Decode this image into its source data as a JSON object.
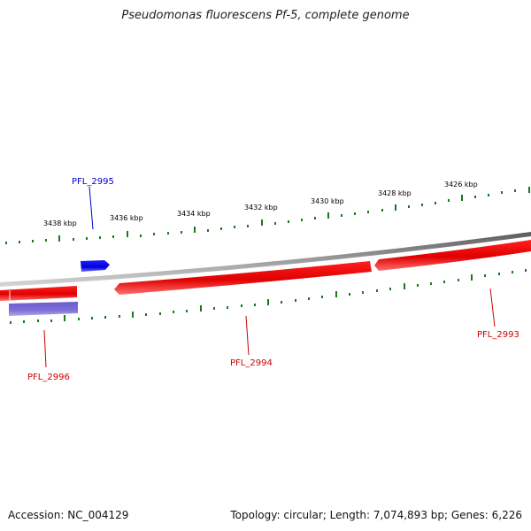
{
  "title": "Pseudomonas fluorescens Pf-5, complete genome",
  "footer": {
    "accession": "Accession: NC_004129",
    "summary": "Topology: circular; Length: 7,074,893 bp; Genes: 6,226"
  },
  "colors": {
    "backbone": "#808080",
    "ticks": "#1a7a1a",
    "forward_gene": "#0000ff",
    "forward_gene_label": "#0000cc",
    "reverse_gene": "#ee0000",
    "reverse_gene_label": "#cc0000",
    "lavender_gene": "#7060cc"
  },
  "scale_labels": [
    "3438 kbp",
    "3436 kbp",
    "3434 kbp",
    "3432 kbp",
    "3430 kbp",
    "3428 kbp",
    "3426 kbp"
  ],
  "genes": [
    {
      "id": "PFL_2995",
      "strand": "forward"
    },
    {
      "id": "PFL_2996",
      "strand": "reverse"
    },
    {
      "id": "PFL_2994",
      "strand": "reverse"
    },
    {
      "id": "PFL_2993",
      "strand": "reverse"
    }
  ]
}
